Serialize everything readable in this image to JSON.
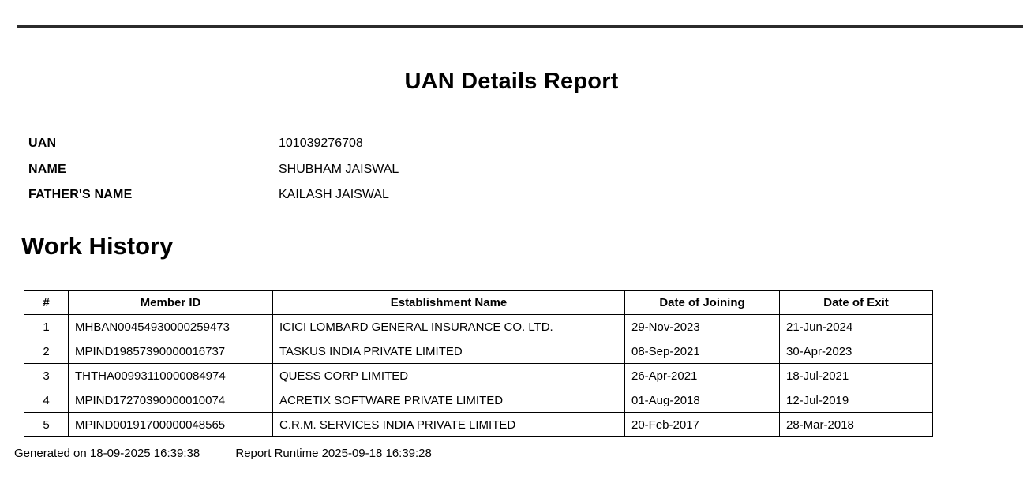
{
  "report": {
    "title": "UAN Details Report"
  },
  "details": {
    "fields": [
      {
        "label": "UAN",
        "value": "101039276708"
      },
      {
        "label": "NAME",
        "value": "SHUBHAM JAISWAL"
      },
      {
        "label": "FATHER'S NAME",
        "value": "KAILASH JAISWAL"
      }
    ]
  },
  "work_history": {
    "heading": "Work History",
    "columns": [
      "#",
      "Member ID",
      "Establishment Name",
      "Date of Joining",
      "Date of Exit"
    ],
    "rows": [
      [
        "1",
        "MHBAN00454930000259473",
        "ICICI LOMBARD GENERAL INSURANCE CO. LTD.",
        "29-Nov-2023",
        "21-Jun-2024"
      ],
      [
        "2",
        "MPIND19857390000016737",
        "TASKUS INDIA PRIVATE LIMITED",
        "08-Sep-2021",
        "30-Apr-2023"
      ],
      [
        "3",
        "THTHA00993110000084974",
        "QUESS CORP LIMITED",
        "26-Apr-2021",
        "18-Jul-2021"
      ],
      [
        "4",
        "MPIND17270390000010074",
        "ACRETIX SOFTWARE PRIVATE LIMITED",
        "01-Aug-2018",
        "12-Jul-2019"
      ],
      [
        "5",
        "MPIND00191700000048565",
        "C.R.M. SERVICES INDIA PRIVATE LIMITED",
        "20-Feb-2017",
        "28-Mar-2018"
      ]
    ]
  },
  "footer": {
    "generated_on": "Generated on 18-09-2025 16:39:38",
    "report_runtime": "Report Runtime 2025-09-18 16:39:28"
  },
  "colors": {
    "background": "#ffffff",
    "text": "#000000",
    "rule": "#2b2b2b",
    "table_border": "#000000"
  }
}
